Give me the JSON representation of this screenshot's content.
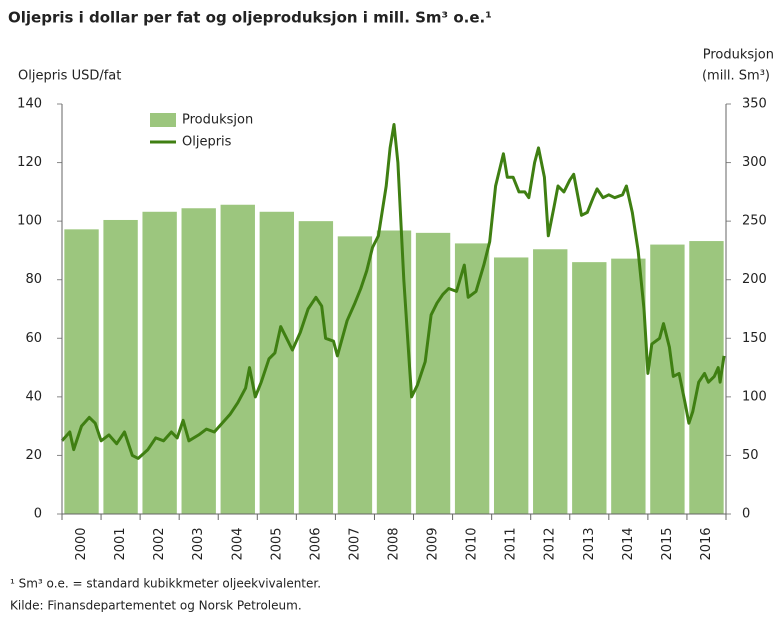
{
  "chart_data": {
    "type": "bar_line",
    "title": "Oljepris i dollar per fat og oljeproduksjon i mill. Sm³ o.e.¹",
    "y_label": "Oljepris  USD/fat",
    "y2_label": [
      "Produksjon",
      "(mill. Sm³)"
    ],
    "footnotes": [
      "¹ Sm³ o.e. =  standard kubikkmeter  oljeekvivalenter.",
      "Kilde: Finansdepartementet og Norsk Petroleum."
    ],
    "categories": [
      "2000",
      "2001",
      "2002",
      "2003",
      "2004",
      "2005",
      "2006",
      "2007",
      "2008",
      "2009",
      "2010",
      "2011",
      "2012",
      "2013",
      "2014",
      "2015",
      "2016"
    ],
    "ylim": [
      0,
      140
    ],
    "yticks": [
      0,
      20,
      40,
      60,
      80,
      100,
      120,
      140
    ],
    "y2lim": [
      0,
      350
    ],
    "y2ticks": [
      0,
      50,
      100,
      150,
      200,
      250,
      300,
      350
    ],
    "xlim": [
      2000,
      2017
    ],
    "legend": "upper left",
    "series": [
      {
        "name": "Produksjon",
        "color": "#9cc67e",
        "axis": "y2",
        "kind": "bar",
        "values": [
          243,
          251,
          258,
          261,
          264,
          258,
          250,
          237,
          242,
          240,
          231,
          219,
          226,
          215,
          218,
          230,
          233
        ]
      },
      {
        "name": "Oljepris",
        "color": "#3f7f12",
        "axis": "y",
        "kind": "line",
        "x": [
          2000.0,
          2000.2,
          2000.3,
          2000.5,
          2000.7,
          2000.85,
          2001.0,
          2001.2,
          2001.4,
          2001.6,
          2001.8,
          2001.95,
          2002.2,
          2002.4,
          2002.6,
          2002.8,
          2002.95,
          2003.1,
          2003.25,
          2003.5,
          2003.7,
          2003.9,
          2004.1,
          2004.3,
          2004.5,
          2004.7,
          2004.8,
          2004.95,
          2005.1,
          2005.3,
          2005.45,
          2005.6,
          2005.75,
          2005.9,
          2006.1,
          2006.3,
          2006.5,
          2006.65,
          2006.75,
          2006.95,
          2007.05,
          2007.3,
          2007.5,
          2007.65,
          2007.8,
          2007.95,
          2008.1,
          2008.3,
          2008.4,
          2008.5,
          2008.6,
          2008.75,
          2008.9,
          2008.95,
          2009.1,
          2009.3,
          2009.45,
          2009.6,
          2009.75,
          2009.9,
          2010.1,
          2010.3,
          2010.4,
          2010.6,
          2010.8,
          2010.95,
          2011.1,
          2011.3,
          2011.4,
          2011.55,
          2011.7,
          2011.85,
          2011.95,
          2012.1,
          2012.2,
          2012.35,
          2012.45,
          2012.6,
          2012.7,
          2012.85,
          2013.0,
          2013.1,
          2013.3,
          2013.45,
          2013.6,
          2013.7,
          2013.85,
          2014.0,
          2014.15,
          2014.35,
          2014.45,
          2014.6,
          2014.75,
          2014.9,
          2015.0,
          2015.1,
          2015.3,
          2015.4,
          2015.55,
          2015.65,
          2015.8,
          2015.95,
          2016.05,
          2016.15,
          2016.3,
          2016.45,
          2016.55,
          2016.7,
          2016.8,
          2016.85,
          2016.95
        ],
        "values": [
          25,
          28,
          22,
          30,
          33,
          31,
          25,
          27,
          24,
          28,
          20,
          19,
          22,
          26,
          25,
          28,
          26,
          32,
          25,
          27,
          29,
          28,
          31,
          34,
          38,
          43,
          50,
          40,
          45,
          53,
          55,
          64,
          60,
          56,
          62,
          70,
          74,
          71,
          60,
          59,
          54,
          66,
          72,
          77,
          83,
          91,
          95,
          112,
          125,
          133,
          120,
          80,
          50,
          40,
          44,
          52,
          68,
          72,
          75,
          77,
          76,
          85,
          74,
          76,
          85,
          93,
          112,
          123,
          115,
          115,
          110,
          110,
          108,
          120,
          125,
          115,
          95,
          105,
          112,
          110,
          114,
          116,
          102,
          103,
          108,
          111,
          108,
          109,
          108,
          109,
          112,
          103,
          90,
          70,
          48,
          58,
          60,
          65,
          57,
          47,
          48,
          38,
          31,
          35,
          45,
          48,
          45,
          47,
          50,
          45,
          54
        ]
      }
    ]
  }
}
